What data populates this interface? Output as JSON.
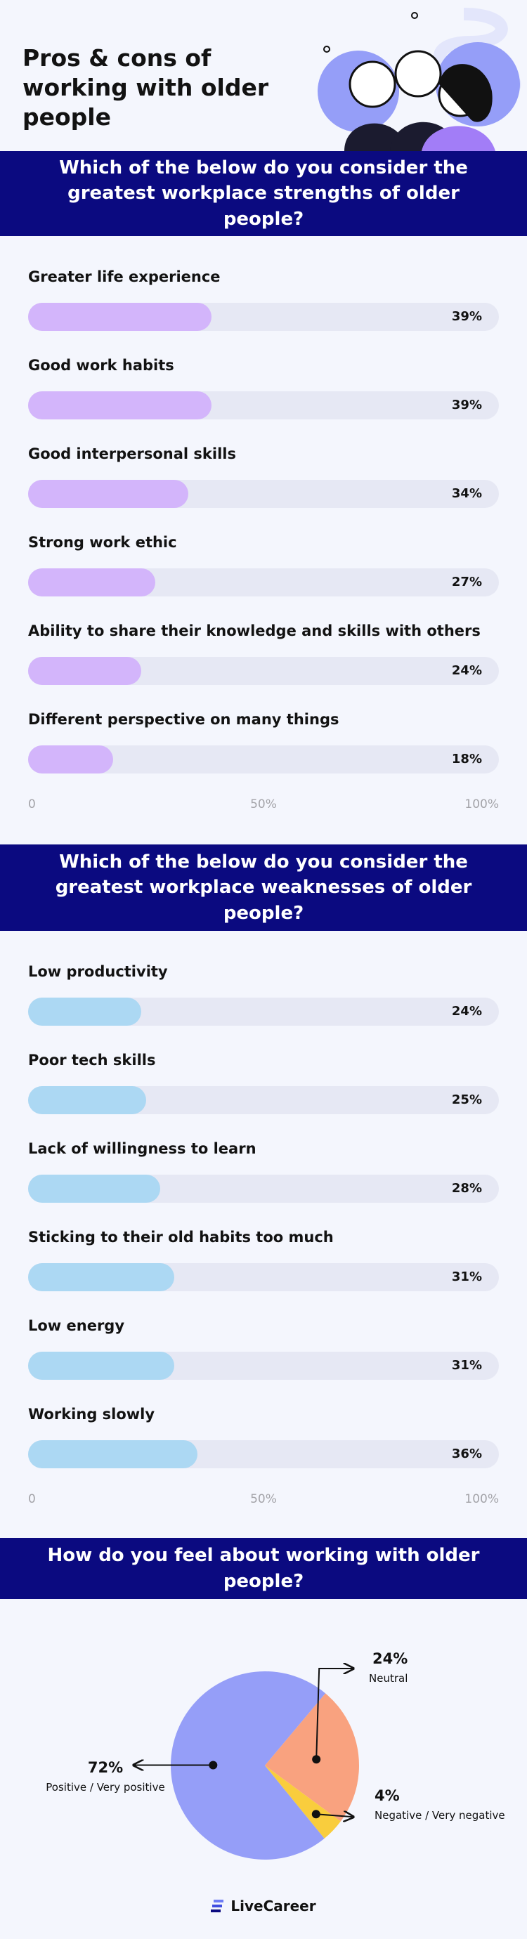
{
  "header": {
    "title": "Pros & cons of working with older people"
  },
  "chart_data": [
    {
      "type": "bar",
      "orientation": "horizontal",
      "title": "Which of the below do you consider the greatest workplace strengths of older people?",
      "categories": [
        "Greater life experience",
        "Good work habits",
        "Good interpersonal skills",
        "Strong work ethic",
        "Ability to share their knowledge and skills with others",
        "Different perspective on many things"
      ],
      "values": [
        39,
        39,
        34,
        27,
        24,
        18
      ],
      "value_labels": [
        "39%",
        "39%",
        "34%",
        "27%",
        "24%",
        "18%"
      ],
      "color": "#d3b5fb",
      "xlim": [
        0,
        100
      ],
      "xticks": [
        0,
        {
          "value": 50,
          "label": "50%"
        },
        {
          "value": 100,
          "label": "100%"
        }
      ]
    },
    {
      "type": "bar",
      "orientation": "horizontal",
      "title": "Which of the below do you consider the greatest workplace weaknesses of older people?",
      "categories": [
        "Low productivity",
        "Poor tech skills",
        "Lack of willingness to learn",
        "Sticking to their old habits too much",
        "Low energy",
        "Working slowly"
      ],
      "values": [
        24,
        25,
        28,
        31,
        31,
        36
      ],
      "value_labels": [
        "24%",
        "25%",
        "28%",
        "31%",
        "31%",
        "36%"
      ],
      "color": "#acd8f3",
      "xlim": [
        0,
        100
      ],
      "xticks": [
        0,
        {
          "value": 50,
          "label": "50%"
        },
        {
          "value": 100,
          "label": "100%"
        }
      ]
    },
    {
      "type": "pie",
      "title": "How do you feel about working with older people?",
      "categories": [
        "Positive / Very positive",
        "Neutral",
        "Negative / Very negative"
      ],
      "values": [
        72,
        24,
        4
      ],
      "value_labels": [
        "72%",
        "24%",
        "4%"
      ],
      "colors": [
        "#959ef8",
        "#f9a27f",
        "#f9cd3d"
      ]
    }
  ],
  "footer": {
    "logo": "LiveCareer"
  }
}
